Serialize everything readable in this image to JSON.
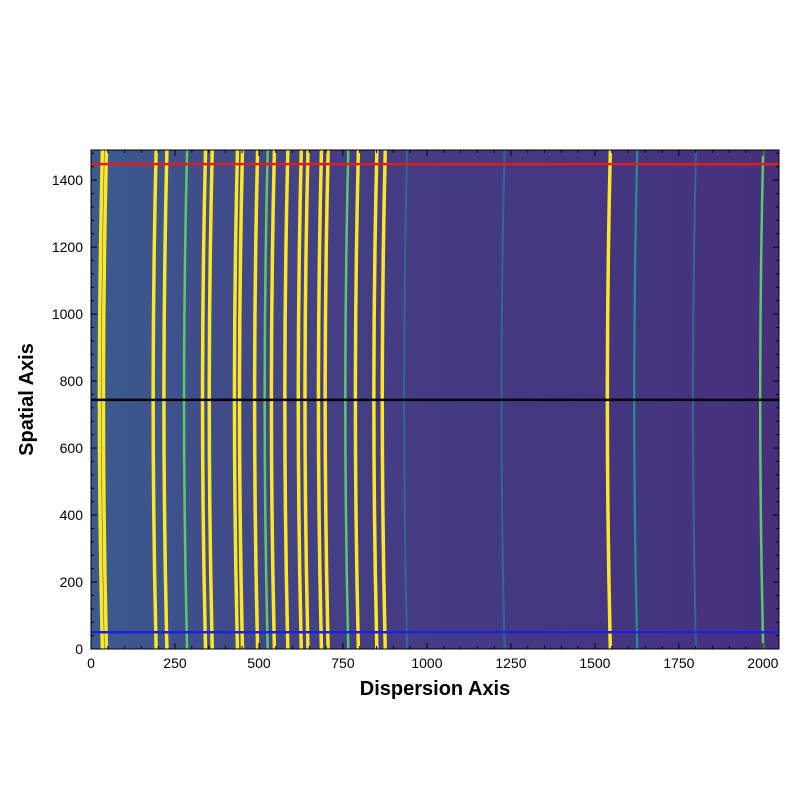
{
  "chart_data": {
    "type": "heatmap",
    "xlabel": "Dispersion Axis",
    "ylabel": "Spatial Axis",
    "xlim": [
      0,
      2048
    ],
    "ylim": [
      0,
      1490
    ],
    "xticks": [
      0,
      250,
      500,
      750,
      1000,
      1250,
      1500,
      1750,
      2000
    ],
    "yticks": [
      0,
      200,
      400,
      600,
      800,
      1000,
      1200,
      1400
    ],
    "xtick_labels": [
      "0",
      "250",
      "500",
      "750",
      "1000",
      "1250",
      "1500",
      "1750",
      "2000"
    ],
    "ytick_labels": [
      "0",
      "200",
      "400",
      "600",
      "800",
      "1000",
      "1200",
      "1400"
    ],
    "colormap": "viridis",
    "colors": {
      "background_left": "#3b5b8f",
      "background_mid": "#433e85",
      "background_right": "#46307e",
      "line_bright": "#fde725",
      "line_mid": "#5ec962",
      "line_teal": "#21918c",
      "line_faint": "#31688e"
    },
    "emission_lines": [
      {
        "x": 28,
        "intensity": "bright"
      },
      {
        "x": 40,
        "intensity": "bright"
      },
      {
        "x": 188,
        "intensity": "bright"
      },
      {
        "x": 220,
        "intensity": "bright"
      },
      {
        "x": 280,
        "intensity": "mid"
      },
      {
        "x": 335,
        "intensity": "bright"
      },
      {
        "x": 355,
        "intensity": "bright"
      },
      {
        "x": 430,
        "intensity": "bright"
      },
      {
        "x": 445,
        "intensity": "bright"
      },
      {
        "x": 490,
        "intensity": "bright"
      },
      {
        "x": 520,
        "intensity": "mid"
      },
      {
        "x": 540,
        "intensity": "bright"
      },
      {
        "x": 580,
        "intensity": "bright"
      },
      {
        "x": 620,
        "intensity": "bright"
      },
      {
        "x": 640,
        "intensity": "bright"
      },
      {
        "x": 680,
        "intensity": "bright"
      },
      {
        "x": 700,
        "intensity": "bright"
      },
      {
        "x": 760,
        "intensity": "mid"
      },
      {
        "x": 790,
        "intensity": "bright"
      },
      {
        "x": 845,
        "intensity": "bright"
      },
      {
        "x": 870,
        "intensity": "bright"
      },
      {
        "x": 935,
        "intensity": "faint"
      },
      {
        "x": 1225,
        "intensity": "faint"
      },
      {
        "x": 1540,
        "intensity": "bright"
      },
      {
        "x": 1620,
        "intensity": "teal"
      },
      {
        "x": 1795,
        "intensity": "faint"
      },
      {
        "x": 1995,
        "intensity": "mid"
      }
    ],
    "horizontal_lines": [
      {
        "y": 1448,
        "color": "#e41a1c"
      },
      {
        "y": 744,
        "color": "#000000"
      },
      {
        "y": 50,
        "color": "#1f1fe0"
      }
    ],
    "grid": false,
    "legend": "none"
  }
}
